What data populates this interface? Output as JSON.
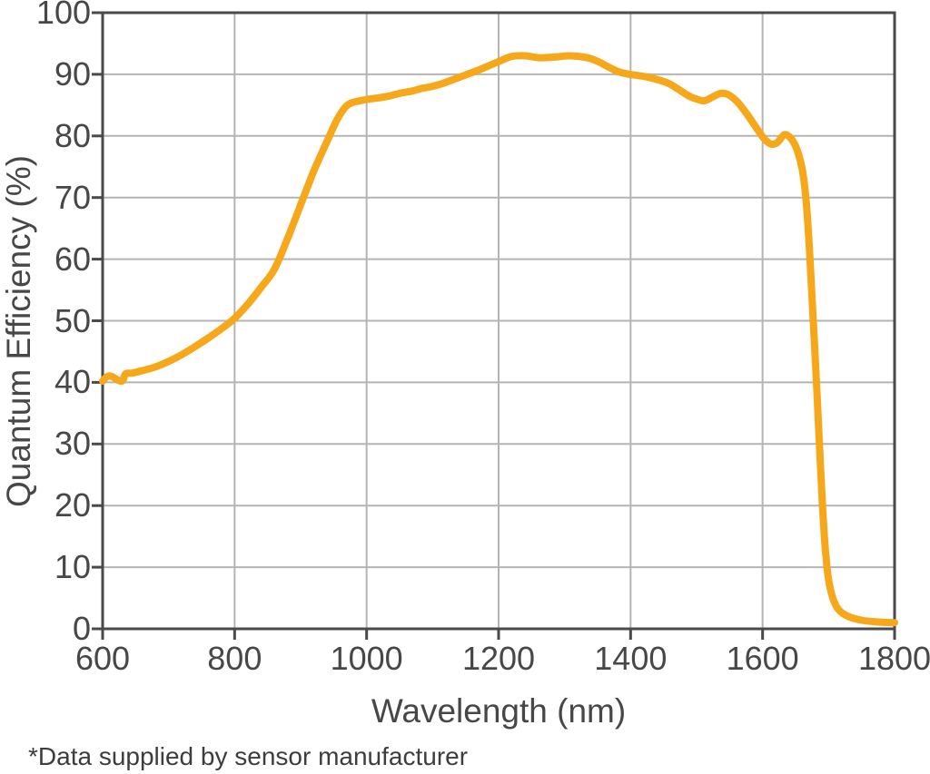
{
  "chart_data": {
    "type": "line",
    "title": "",
    "xlabel": "Wavelength (nm)",
    "ylabel": "Quantum Efficiency (%)",
    "footnote": "*Data supplied by sensor manufacturer",
    "xlim": [
      600,
      1800
    ],
    "ylim": [
      0,
      100
    ],
    "x_ticks": [
      600,
      800,
      1000,
      1200,
      1400,
      1600,
      1800
    ],
    "y_ticks": [
      0,
      10,
      20,
      30,
      40,
      50,
      60,
      70,
      80,
      90,
      100
    ],
    "grid": true,
    "legend": false,
    "series": [
      {
        "name": "Quantum Efficiency",
        "color": "#F7A71A",
        "points": [
          [
            600,
            40.2
          ],
          [
            606,
            40.9
          ],
          [
            613,
            41.0
          ],
          [
            621,
            40.5
          ],
          [
            627,
            40.2
          ],
          [
            631,
            40.4
          ],
          [
            635,
            41.4
          ],
          [
            645,
            41.5
          ],
          [
            660,
            41.9
          ],
          [
            680,
            42.5
          ],
          [
            700,
            43.4
          ],
          [
            720,
            44.5
          ],
          [
            740,
            45.8
          ],
          [
            760,
            47.2
          ],
          [
            780,
            48.7
          ],
          [
            800,
            50.4
          ],
          [
            820,
            52.7
          ],
          [
            840,
            55.4
          ],
          [
            860,
            58.3
          ],
          [
            880,
            63.3
          ],
          [
            900,
            68.8
          ],
          [
            920,
            74.3
          ],
          [
            940,
            79.1
          ],
          [
            955,
            82.6
          ],
          [
            968,
            84.7
          ],
          [
            978,
            85.4
          ],
          [
            990,
            85.7
          ],
          [
            1005,
            86.0
          ],
          [
            1020,
            86.2
          ],
          [
            1035,
            86.5
          ],
          [
            1050,
            86.9
          ],
          [
            1070,
            87.3
          ],
          [
            1083,
            87.7
          ],
          [
            1098,
            88.0
          ],
          [
            1115,
            88.5
          ],
          [
            1130,
            89.1
          ],
          [
            1150,
            89.9
          ],
          [
            1170,
            90.7
          ],
          [
            1190,
            91.6
          ],
          [
            1205,
            92.3
          ],
          [
            1220,
            92.9
          ],
          [
            1240,
            93.0
          ],
          [
            1262,
            92.7
          ],
          [
            1285,
            92.8
          ],
          [
            1305,
            93.0
          ],
          [
            1322,
            92.9
          ],
          [
            1338,
            92.6
          ],
          [
            1352,
            92.0
          ],
          [
            1368,
            91.1
          ],
          [
            1382,
            90.4
          ],
          [
            1398,
            90.0
          ],
          [
            1412,
            89.8
          ],
          [
            1428,
            89.5
          ],
          [
            1442,
            89.1
          ],
          [
            1458,
            88.5
          ],
          [
            1472,
            87.6
          ],
          [
            1488,
            86.5
          ],
          [
            1502,
            85.9
          ],
          [
            1512,
            85.7
          ],
          [
            1524,
            86.3
          ],
          [
            1536,
            86.9
          ],
          [
            1548,
            86.7
          ],
          [
            1562,
            85.5
          ],
          [
            1576,
            83.6
          ],
          [
            1590,
            81.4
          ],
          [
            1602,
            79.6
          ],
          [
            1612,
            78.7
          ],
          [
            1622,
            78.9
          ],
          [
            1633,
            80.2
          ],
          [
            1643,
            79.6
          ],
          [
            1652,
            77.8
          ],
          [
            1660,
            74.6
          ],
          [
            1666,
            69.5
          ],
          [
            1671,
            61.5
          ],
          [
            1675,
            53.5
          ],
          [
            1679,
            45.5
          ],
          [
            1683,
            37.0
          ],
          [
            1687,
            28.0
          ],
          [
            1691,
            19.5
          ],
          [
            1695,
            13.0
          ],
          [
            1700,
            8.0
          ],
          [
            1707,
            4.8
          ],
          [
            1716,
            3.0
          ],
          [
            1730,
            2.0
          ],
          [
            1750,
            1.4
          ],
          [
            1775,
            1.1
          ],
          [
            1800,
            1.0
          ]
        ]
      }
    ],
    "colors": {
      "line": "#F7A71A",
      "grid": "#b4b4b4",
      "axis_frame": "#4a4a4a",
      "text": "#474747"
    }
  }
}
